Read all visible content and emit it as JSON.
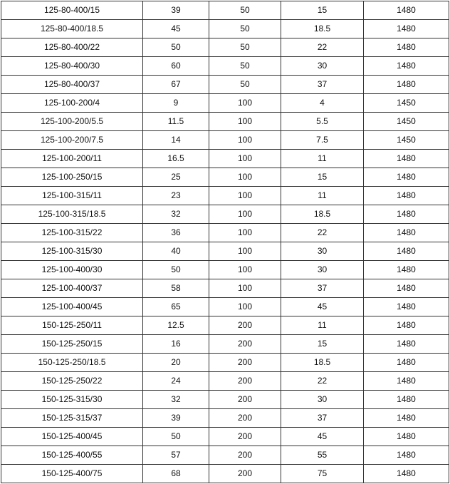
{
  "table": {
    "rows": [
      [
        "125-80-400/15",
        "39",
        "50",
        "15",
        "1480"
      ],
      [
        "125-80-400/18.5",
        "45",
        "50",
        "18.5",
        "1480"
      ],
      [
        "125-80-400/22",
        "50",
        "50",
        "22",
        "1480"
      ],
      [
        "125-80-400/30",
        "60",
        "50",
        "30",
        "1480"
      ],
      [
        "125-80-400/37",
        "67",
        "50",
        "37",
        "1480"
      ],
      [
        "125-100-200/4",
        "9",
        "100",
        "4",
        "1450"
      ],
      [
        "125-100-200/5.5",
        "11.5",
        "100",
        "5.5",
        "1450"
      ],
      [
        "125-100-200/7.5",
        "14",
        "100",
        "7.5",
        "1450"
      ],
      [
        "125-100-200/11",
        "16.5",
        "100",
        "11",
        "1480"
      ],
      [
        "125-100-250/15",
        "25",
        "100",
        "15",
        "1480"
      ],
      [
        "125-100-315/11",
        "23",
        "100",
        "11",
        "1480"
      ],
      [
        "125-100-315/18.5",
        "32",
        "100",
        "18.5",
        "1480"
      ],
      [
        "125-100-315/22",
        "36",
        "100",
        "22",
        "1480"
      ],
      [
        "125-100-315/30",
        "40",
        "100",
        "30",
        "1480"
      ],
      [
        "125-100-400/30",
        "50",
        "100",
        "30",
        "1480"
      ],
      [
        "125-100-400/37",
        "58",
        "100",
        "37",
        "1480"
      ],
      [
        "125-100-400/45",
        "65",
        "100",
        "45",
        "1480"
      ],
      [
        "150-125-250/11",
        "12.5",
        "200",
        "11",
        "1480"
      ],
      [
        "150-125-250/15",
        "16",
        "200",
        "15",
        "1480"
      ],
      [
        "150-125-250/18.5",
        "20",
        "200",
        "18.5",
        "1480"
      ],
      [
        "150-125-250/22",
        "24",
        "200",
        "22",
        "1480"
      ],
      [
        "150-125-315/30",
        "32",
        "200",
        "30",
        "1480"
      ],
      [
        "150-125-315/37",
        "39",
        "200",
        "37",
        "1480"
      ],
      [
        "150-125-400/45",
        "50",
        "200",
        "45",
        "1480"
      ],
      [
        "150-125-400/55",
        "57",
        "200",
        "55",
        "1480"
      ],
      [
        "150-125-400/75",
        "68",
        "200",
        "75",
        "1480"
      ]
    ]
  }
}
